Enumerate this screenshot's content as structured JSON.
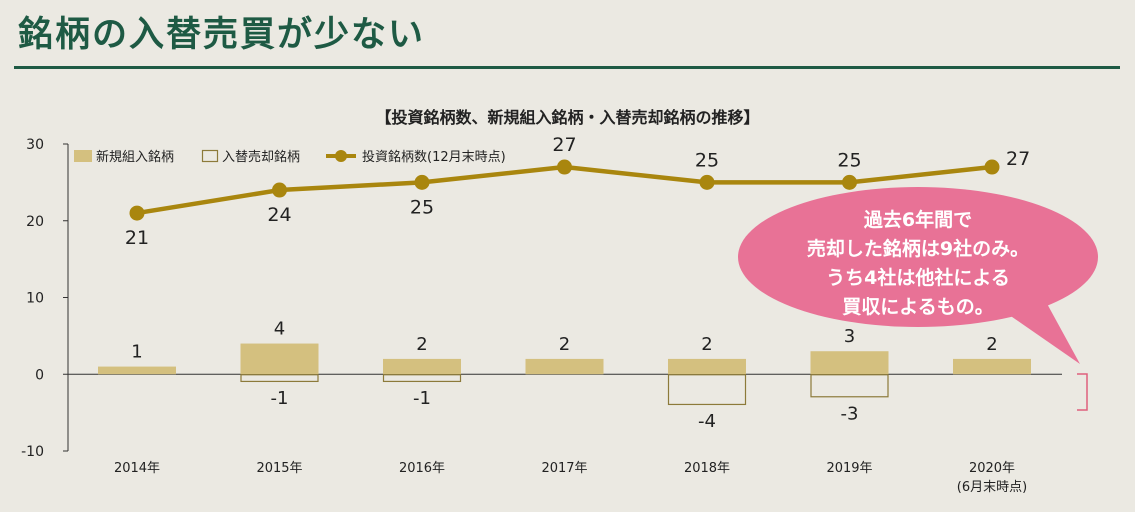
{
  "page": {
    "title": "銘柄の入替売買が少ない"
  },
  "callout": {
    "text": "過去6年間で\n売却した銘柄は9社のみ。\nうち4社は他社による\n買収によるもの。"
  },
  "colors": {
    "title_green": "#1e5a44",
    "bar_fill": "#d4c07f",
    "sell_outline": "#8c7a3a",
    "line": "#a9860e",
    "callout": "#e87296",
    "bracket": "#e0607c"
  },
  "chart_data": {
    "type": "bar",
    "title": "【投資銘柄数、新規組入銘柄・入替売却銘柄の推移】",
    "categories": [
      "2014年",
      "2015年",
      "2016年",
      "2017年",
      "2018年",
      "2019年",
      "2020年"
    ],
    "category_sublabels": [
      "",
      "",
      "",
      "",
      "",
      "",
      "(6月末時点)"
    ],
    "ylim": [
      -10,
      30
    ],
    "yticks": [
      -10,
      0,
      10,
      20,
      30
    ],
    "legend_position": "top-left",
    "series": [
      {
        "name": "新規組入銘柄",
        "kind": "bar",
        "values": [
          1,
          4,
          2,
          2,
          2,
          3,
          2
        ]
      },
      {
        "name": "入替売却銘柄",
        "kind": "bar",
        "values": [
          0,
          -1,
          -1,
          0,
          -4,
          -3,
          0
        ]
      },
      {
        "name": "投資銘柄数(12月末時点)",
        "kind": "line",
        "values": [
          21,
          24,
          25,
          27,
          25,
          25,
          27
        ]
      }
    ]
  }
}
